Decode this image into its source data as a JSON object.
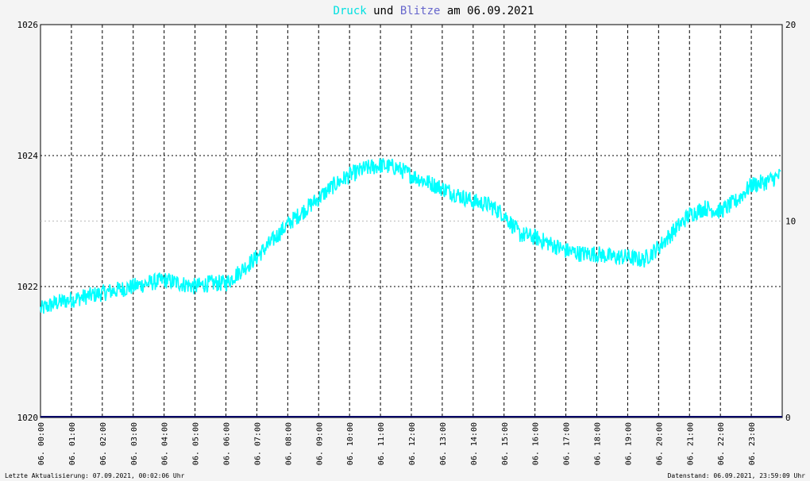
{
  "title": {
    "part1": "Druck",
    "part2": " und ",
    "part3": "Blitze",
    "part4": " am 06.09.2021",
    "color1": "#00e0e0",
    "color3": "#6666cc"
  },
  "footer": {
    "left": "Letzte Aktualisierung: 07.09.2021, 00:02:06 Uhr",
    "right": "Datenstand: 06.09.2021, 23:59:09 Uhr"
  },
  "chart_data": {
    "type": "line",
    "x_ticks": [
      "06. 00:00",
      "06. 01:00",
      "06. 02:00",
      "06. 03:00",
      "06. 04:00",
      "06. 05:00",
      "06. 06:00",
      "06. 07:00",
      "06. 08:00",
      "06. 09:00",
      "06. 10:00",
      "06. 11:00",
      "06. 12:00",
      "06. 13:00",
      "06. 14:00",
      "06. 15:00",
      "06. 16:00",
      "06. 17:00",
      "06. 18:00",
      "06. 19:00",
      "06. 20:00",
      "06. 21:00",
      "06. 22:00",
      "06. 23:00"
    ],
    "y_left": {
      "ticks": [
        "1020",
        "1022",
        "1024",
        "1026"
      ],
      "range": [
        1020,
        1026
      ]
    },
    "y_right": {
      "ticks": [
        "0",
        "10",
        "20"
      ],
      "range": [
        0,
        20
      ]
    },
    "xlim": [
      0,
      24
    ],
    "series": [
      {
        "name": "Druck",
        "color": "#00ffff",
        "axis": "left",
        "x": [
          0,
          0.5,
          1,
          1.5,
          2,
          2.5,
          3,
          3.5,
          4,
          4.5,
          5,
          5.5,
          6,
          6.5,
          7,
          7.5,
          8,
          8.5,
          9,
          9.5,
          10,
          10.5,
          11,
          11.5,
          12,
          12.5,
          13,
          13.5,
          14,
          14.5,
          15,
          15.5,
          16,
          16.5,
          17,
          17.5,
          18,
          18.5,
          19,
          19.5,
          20,
          20.5,
          21,
          21.5,
          22,
          22.5,
          23,
          23.5,
          23.95
        ],
        "y": [
          1021.65,
          1021.75,
          1021.8,
          1021.85,
          1021.9,
          1021.95,
          1022.0,
          1022.05,
          1022.1,
          1022.05,
          1022.0,
          1022.05,
          1022.05,
          1022.25,
          1022.45,
          1022.7,
          1022.95,
          1023.15,
          1023.35,
          1023.55,
          1023.7,
          1023.8,
          1023.85,
          1023.82,
          1023.7,
          1023.6,
          1023.5,
          1023.4,
          1023.3,
          1023.25,
          1023.1,
          1022.8,
          1022.75,
          1022.65,
          1022.55,
          1022.5,
          1022.5,
          1022.45,
          1022.45,
          1022.4,
          1022.6,
          1022.85,
          1023.1,
          1023.2,
          1023.15,
          1023.3,
          1023.55,
          1023.6,
          1023.7
        ]
      },
      {
        "name": "Blitze",
        "color": "#000066",
        "axis": "right",
        "x": [
          0,
          24
        ],
        "y": [
          0,
          0
        ]
      }
    ],
    "grid": true
  }
}
